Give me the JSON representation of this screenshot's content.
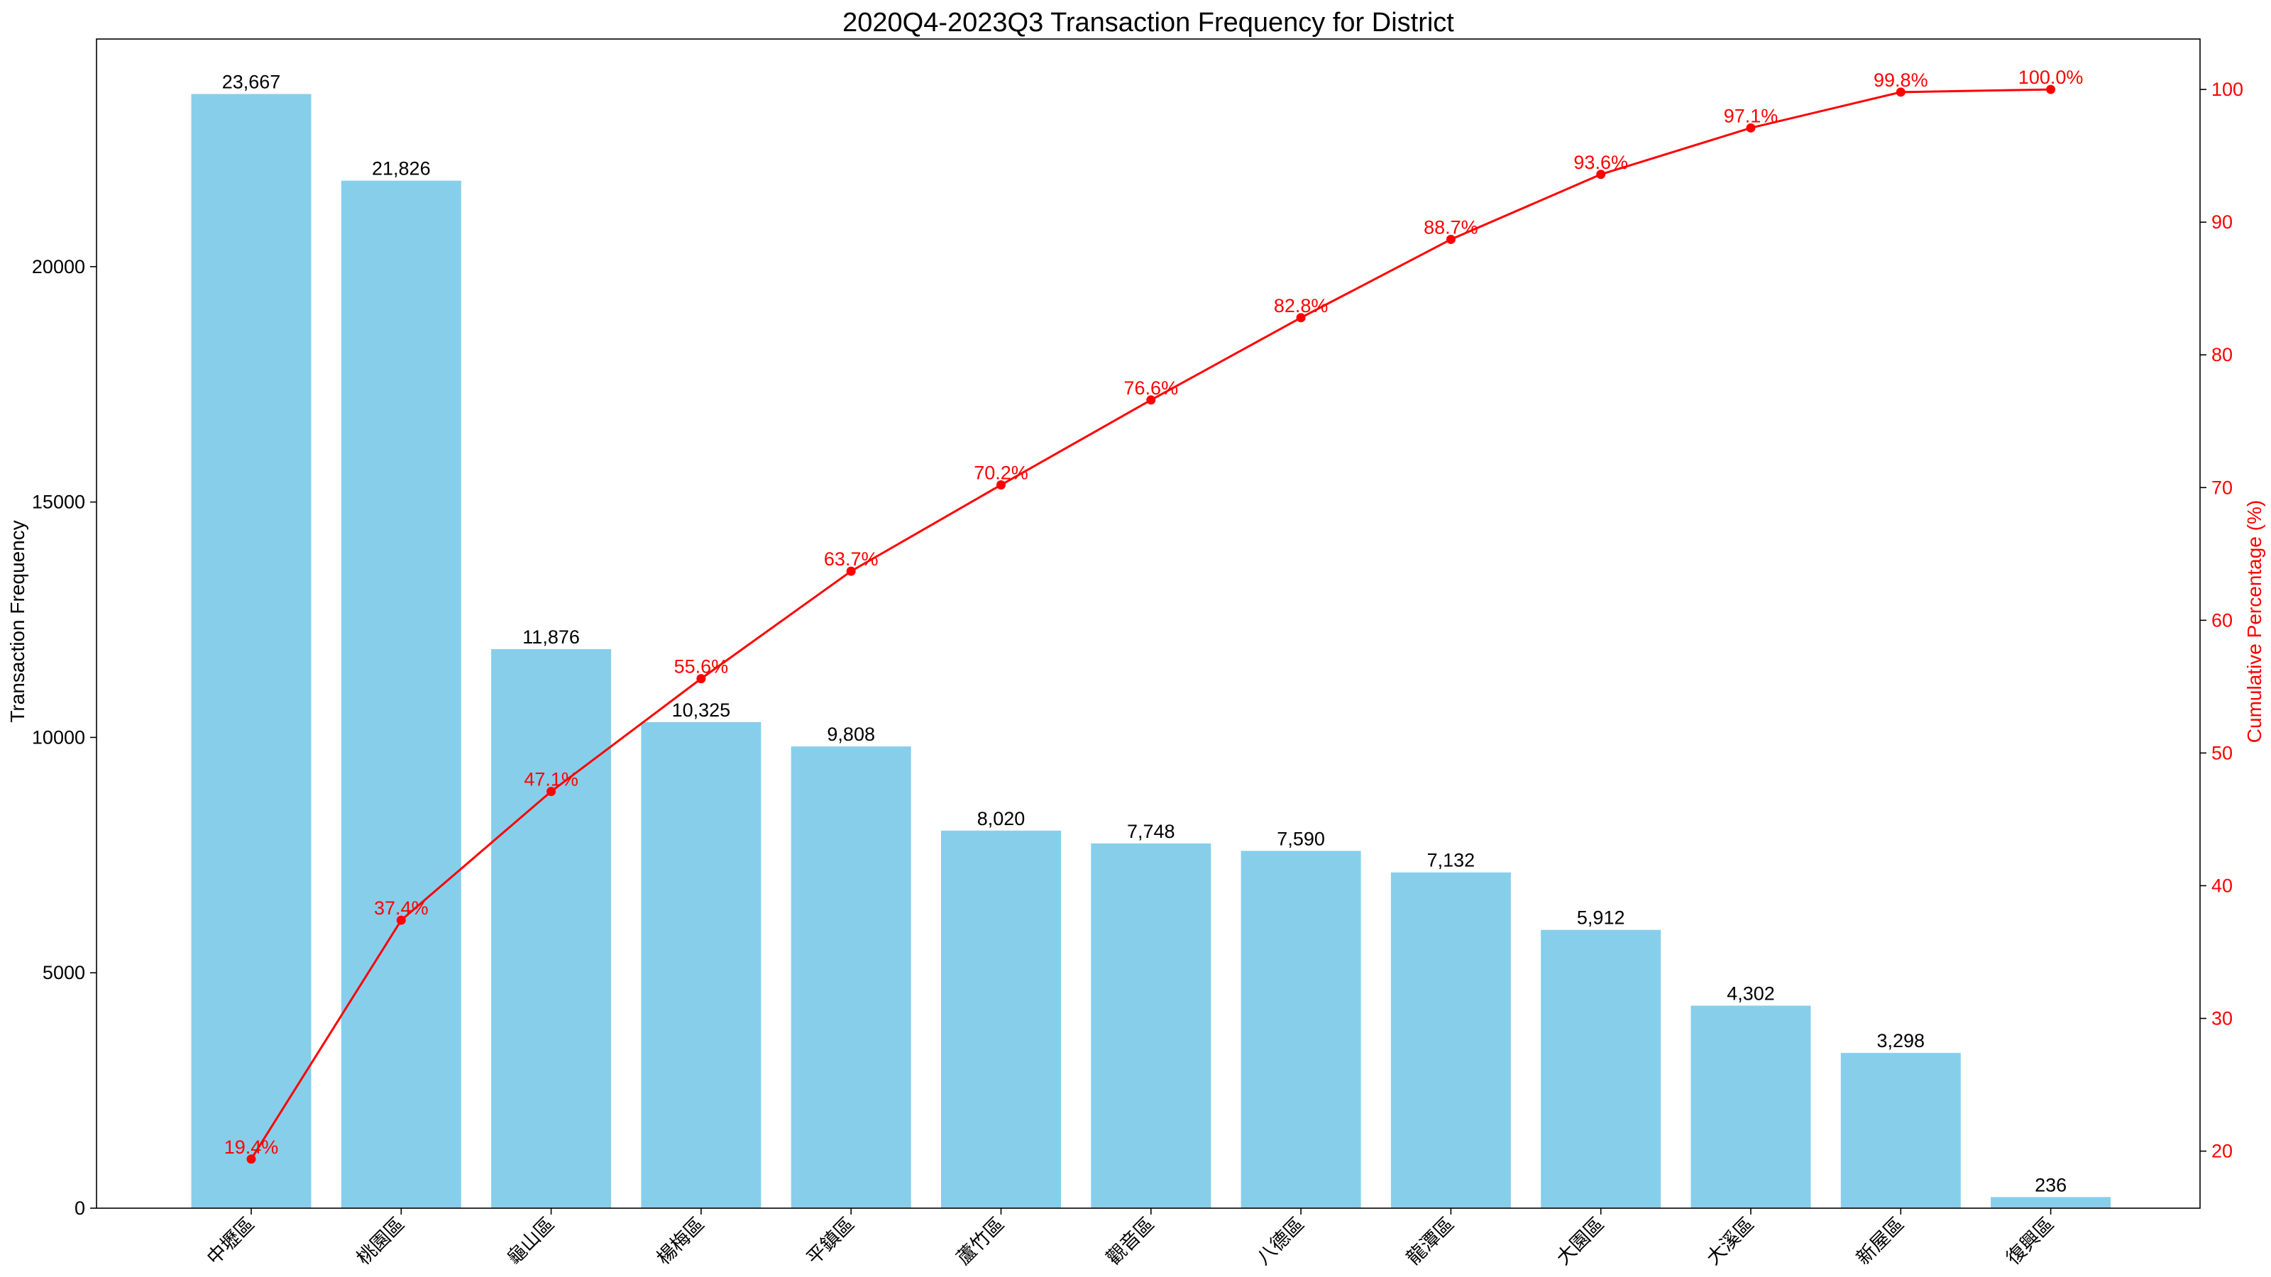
{
  "chart_data": {
    "type": "bar",
    "title": "2020Q4-2023Q3 Transaction Frequency for District",
    "ylabel": "Transaction Frequency",
    "y2label": "Cumulative Percentage (%)",
    "categories": [
      "中壢區",
      "桃園區",
      "龜山區",
      "楊梅區",
      "平鎮區",
      "蘆竹區",
      "觀音區",
      "八德區",
      "龍潭區",
      "大園區",
      "大溪區",
      "新屋區",
      "復興區"
    ],
    "series": [
      {
        "type": "bar",
        "axis": "left",
        "values": [
          23667,
          21826,
          11876,
          10325,
          9808,
          8020,
          7748,
          7590,
          7132,
          5912,
          4302,
          3298,
          236
        ],
        "value_labels": [
          "23,667",
          "21,826",
          "11,876",
          "10,325",
          "9,808",
          "8,020",
          "7,748",
          "7,590",
          "7,132",
          "5,912",
          "4,302",
          "3,298",
          "236"
        ],
        "color": "#87CEEB"
      },
      {
        "type": "line",
        "axis": "right",
        "values": [
          19.4,
          37.4,
          47.1,
          55.6,
          63.7,
          70.2,
          76.6,
          82.8,
          88.7,
          93.6,
          97.1,
          99.8,
          100.0
        ],
        "value_labels": [
          "19.4%",
          "37.4%",
          "47.1%",
          "55.6%",
          "63.7%",
          "70.2%",
          "76.6%",
          "82.8%",
          "88.7%",
          "93.6%",
          "97.1%",
          "99.8%",
          "100.0%"
        ],
        "color": "#FF0000"
      }
    ],
    "ylim": [
      0,
      24835
    ],
    "y2lim": [
      15.7,
      103.8
    ],
    "yticks": [
      0,
      5000,
      10000,
      15000,
      20000
    ],
    "y2ticks": [
      20,
      30,
      40,
      50,
      60,
      70,
      80,
      90,
      100
    ],
    "grid": false
  }
}
